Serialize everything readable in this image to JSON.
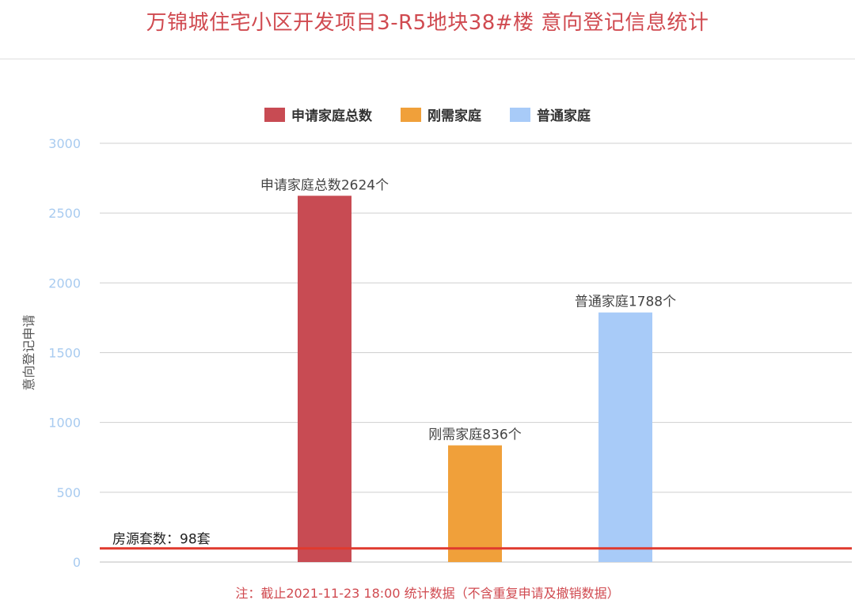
{
  "header": {
    "title": "万锦城住宅小区开发项目3-R5地块38#楼 意向登记信息统计"
  },
  "legend": {
    "items": [
      {
        "label": "申请家庭总数",
        "color": "#c84b53"
      },
      {
        "label": "刚需家庭",
        "color": "#f0a03a"
      },
      {
        "label": "普通家庭",
        "color": "#a8cbf8"
      }
    ]
  },
  "chart_data": {
    "type": "bar",
    "title": "万锦城住宅小区开发项目3-R5地块38#楼 意向登记信息统计",
    "xlabel": "",
    "ylabel": "意向登记申请",
    "ylim": [
      0,
      3000
    ],
    "yticks": [
      0,
      500,
      1000,
      1500,
      2000,
      2500,
      3000
    ],
    "grid": true,
    "legend_position": "top-center",
    "bars": [
      {
        "name": "申请家庭总数",
        "value": 2624,
        "label": "申请家庭总数2624个",
        "color": "#c84b53"
      },
      {
        "name": "刚需家庭",
        "value": 836,
        "label": "刚需家庭836个",
        "color": "#f0a03a"
      },
      {
        "name": "普通家庭",
        "value": 1788,
        "label": "普通家庭1788个",
        "color": "#a8cbf8"
      }
    ],
    "reference_line": {
      "value": 98,
      "label": "房源套数：98套",
      "color": "#e03a2e"
    }
  },
  "footer": {
    "note": "注：截止2021-11-23 18:00 统计数据（不含重复申请及撤销数据）"
  }
}
